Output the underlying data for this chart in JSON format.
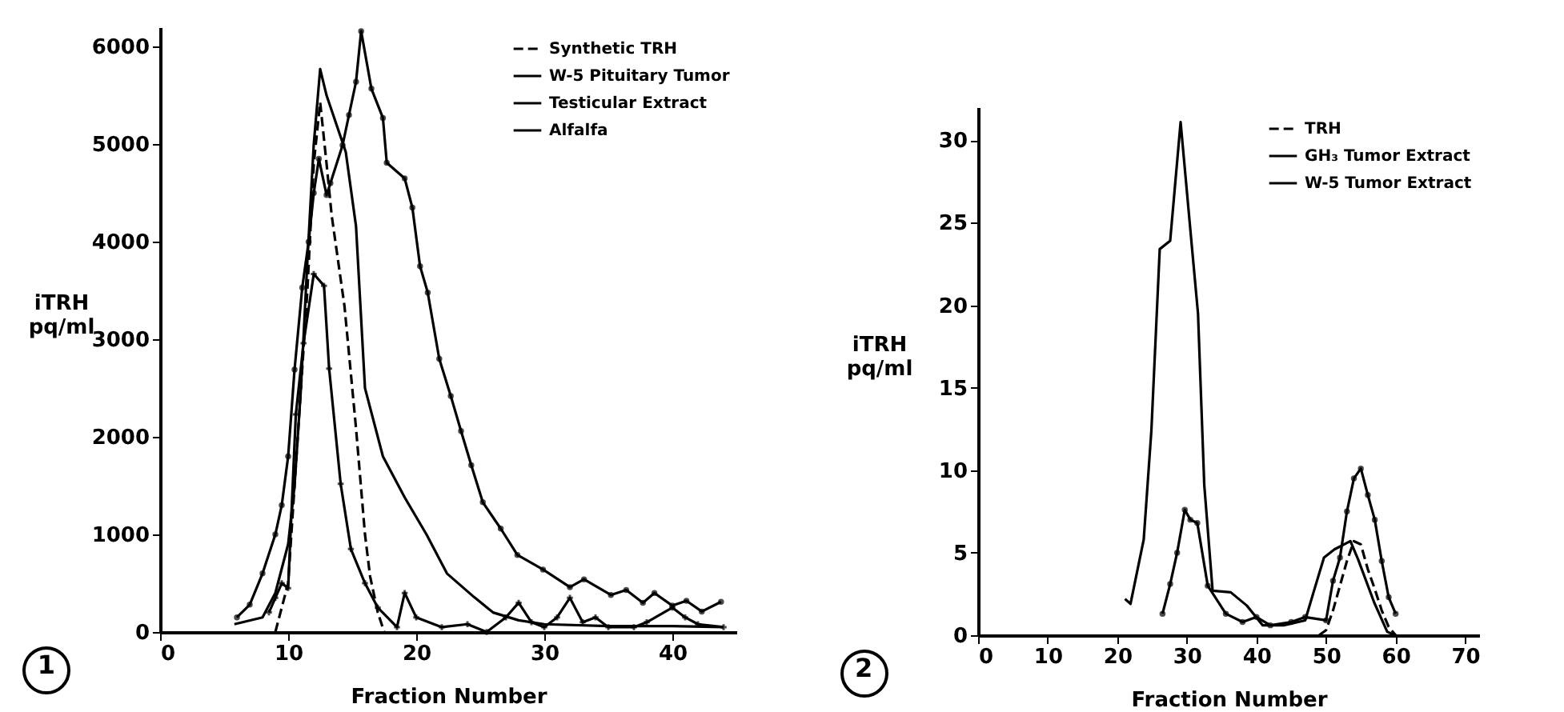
{
  "chart_data": [
    {
      "type": "line",
      "xlabel": "Fraction Number",
      "ylabel": "iTRH pq/ml",
      "xlim": [
        0,
        45
      ],
      "ylim": [
        0,
        6200
      ],
      "xticks": [
        0,
        10,
        20,
        30,
        40
      ],
      "yticks": [
        0,
        1000,
        2000,
        3000,
        4000,
        5000,
        6000
      ],
      "legend": "top right",
      "grid": false,
      "annotations": [
        "1"
      ],
      "series": [
        {
          "name": "Synthetic TRH",
          "color": "#000000",
          "line_style": "dashed",
          "marker": "none",
          "x": [
            9,
            10,
            11,
            11.5,
            12,
            12.5,
            13,
            13.4,
            14.4,
            15.3,
            16,
            16.4,
            17,
            17.5
          ],
          "values": [
            0,
            500,
            2500,
            3500,
            4800,
            5430,
            4800,
            4270,
            3340,
            2090,
            1000,
            570,
            200,
            0
          ]
        },
        {
          "name": "W-5 Pituitary Tumor",
          "color": "#000000",
          "line_style": "solid",
          "marker": "cross",
          "x": [
            8.5,
            9,
            9.5,
            10,
            10.6,
            11.2,
            12,
            12.8,
            13.2,
            14.1,
            14.9,
            16,
            17,
            18.5,
            19.1,
            20,
            22,
            24,
            25.5,
            27,
            28,
            29,
            30,
            31,
            32,
            33,
            34,
            35,
            37,
            38,
            40,
            41,
            42,
            44
          ],
          "values": [
            200,
            350,
            500,
            450,
            2230,
            2960,
            3670,
            3550,
            2700,
            1520,
            850,
            500,
            250,
            50,
            400,
            150,
            50,
            80,
            0,
            150,
            300,
            100,
            50,
            150,
            350,
            100,
            150,
            50,
            50,
            100,
            250,
            150,
            80,
            50
          ]
        },
        {
          "name": "Testicular Extract",
          "color": "#000000",
          "line_style": "solid",
          "marker": "none",
          "x": [
            5.8,
            8,
            9,
            10,
            10.5,
            11,
            11.5,
            12,
            12.5,
            13,
            14.5,
            15.3,
            16,
            17.4,
            19.1,
            20.8,
            22.4,
            24.5,
            26,
            28,
            30,
            35,
            40,
            44
          ],
          "values": [
            80,
            150,
            400,
            900,
            1500,
            2500,
            3800,
            5000,
            5770,
            5500,
            4920,
            4160,
            2500,
            1800,
            1380,
            1000,
            600,
            360,
            200,
            120,
            80,
            60,
            60,
            50
          ]
        },
        {
          "name": "Alfalfa",
          "color": "#000000",
          "line_style": "solid",
          "marker": "circle",
          "x": [
            6,
            7,
            8,
            9,
            9.5,
            10,
            10.5,
            11.1,
            11.6,
            12,
            12.4,
            13,
            13.3,
            14.25,
            14.75,
            15.3,
            15.7,
            16.5,
            17.4,
            17.7,
            19.1,
            19.7,
            20.3,
            20.9,
            21.8,
            22.7,
            23.5,
            24.3,
            25.2,
            26.6,
            27.9,
            29.9,
            32,
            33.1,
            35.2,
            36.4,
            37.7,
            38.6,
            40,
            41.1,
            42.3,
            43.8
          ],
          "values": [
            150,
            280,
            600,
            1000,
            1300,
            1800,
            2690,
            3530,
            4000,
            4500,
            4850,
            4480,
            4600,
            4990,
            5300,
            5640,
            6160,
            5570,
            5270,
            4810,
            4650,
            4350,
            3750,
            3480,
            2800,
            2420,
            2060,
            1710,
            1330,
            1060,
            790,
            640,
            460,
            540,
            380,
            430,
            300,
            400,
            270,
            320,
            210,
            310
          ]
        }
      ]
    },
    {
      "type": "line",
      "xlabel": "Fraction Number",
      "ylabel": "iTRH pq/ml",
      "xlim": [
        0,
        72
      ],
      "ylim": [
        0,
        32
      ],
      "xticks": [
        0,
        10,
        20,
        30,
        40,
        50,
        60,
        70
      ],
      "yticks": [
        0,
        5,
        10,
        15,
        20,
        25,
        30
      ],
      "legend": "top right",
      "grid": false,
      "annotations": [
        "2"
      ],
      "series": [
        {
          "name": "TRH",
          "color": "#000000",
          "line_style": "dashed",
          "marker": "none",
          "x": [
            49,
            50,
            51,
            52,
            53,
            54,
            55,
            56,
            57,
            58,
            59,
            60
          ],
          "values": [
            0,
            0.3,
            1.5,
            3.0,
            4.5,
            5.7,
            5.5,
            4.0,
            2.8,
            1.5,
            0.5,
            0
          ]
        },
        {
          "name": "GH₃ Tumor Extract",
          "color": "#000000",
          "line_style": "solid",
          "marker": "none",
          "x": [
            21.1,
            21.9,
            23.8,
            24.9,
            26.1,
            27.6,
            29.1,
            30.6,
            31.6,
            32.5,
            33.7,
            36.3,
            38.6,
            40.9,
            43.9,
            47,
            48.2,
            49.7,
            51.2,
            53.5,
            54.6,
            56.9,
            58.8,
            60
          ],
          "values": [
            2.2,
            1.9,
            5.8,
            12.4,
            23.4,
            23.9,
            31.1,
            24.1,
            19.5,
            9.1,
            2.7,
            2.6,
            1.8,
            0.6,
            0.6,
            0.9,
            2.6,
            4.7,
            5.2,
            5.7,
            4.6,
            2.0,
            0.2,
            0
          ]
        },
        {
          "name": "W-5 Tumor Extract",
          "color": "#000000",
          "line_style": "solid",
          "marker": "circle",
          "x": [
            26.5,
            27.6,
            28.6,
            29.7,
            30.5,
            31.5,
            33,
            35.6,
            38,
            40,
            42,
            45,
            47,
            50,
            51,
            52,
            53,
            54,
            55,
            56,
            57,
            58,
            59,
            60
          ],
          "values": [
            1.3,
            3.1,
            5.0,
            7.6,
            7.0,
            6.8,
            3.0,
            1.3,
            0.8,
            1.1,
            0.6,
            0.8,
            1.1,
            0.9,
            3.3,
            4.7,
            7.5,
            9.5,
            10.1,
            8.5,
            7.0,
            4.5,
            2.3,
            1.3
          ]
        }
      ]
    }
  ]
}
